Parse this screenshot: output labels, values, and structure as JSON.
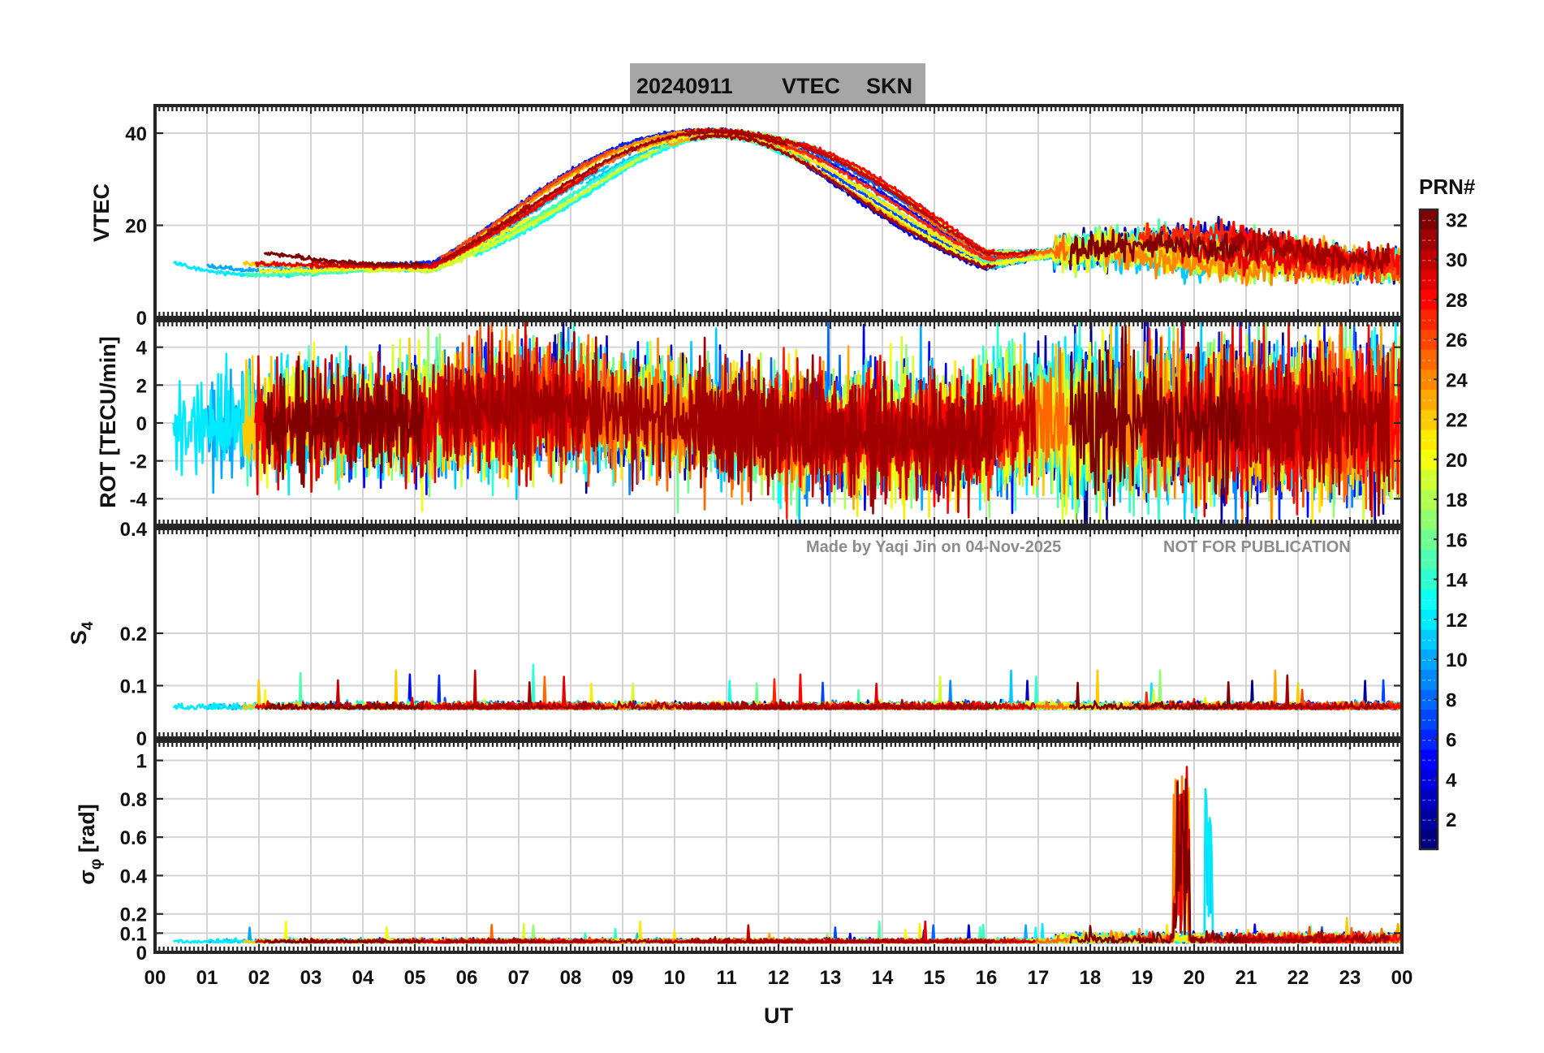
{
  "title": {
    "date": "20240911",
    "quantity": "VTEC",
    "station": "SKN",
    "background": "#a6a6a6"
  },
  "watermark": {
    "author_line": "Made by Yaqi Jin on 04-Nov-2025",
    "notice": "NOT FOR PUBLICATION",
    "color": "#8c8c8c"
  },
  "colorbar": {
    "label": "PRN#",
    "ticks": [
      "2",
      "4",
      "6",
      "8",
      "10",
      "12",
      "14",
      "16",
      "18",
      "20",
      "22",
      "24",
      "26",
      "28",
      "30",
      "32"
    ],
    "colormap": "jet"
  },
  "chart_data": [
    {
      "type": "line",
      "panel": "vtec",
      "ylabel": "VTEC",
      "xlabel": "",
      "xlim": [
        0,
        24
      ],
      "ylim": [
        0,
        46
      ],
      "yticks": [
        "0",
        "20",
        "40"
      ],
      "grid": true,
      "note": "multi-series, one curve per satellite PRN 1-32, colored by PRN"
    },
    {
      "type": "line",
      "panel": "rot",
      "ylabel": "ROT [TECU/min]",
      "xlabel": "",
      "xlim": [
        0,
        24
      ],
      "ylim": [
        -5.4,
        5.4
      ],
      "yticks": [
        "-4",
        "-2",
        "0",
        "2",
        "4"
      ],
      "grid": true
    },
    {
      "type": "line",
      "panel": "s4",
      "ylabel": "S4",
      "xlabel": "",
      "xlim": [
        0,
        24
      ],
      "ylim": [
        0,
        0.4
      ],
      "yticks": [
        "0",
        "0.1",
        "0.2",
        "0.4"
      ],
      "grid": true
    },
    {
      "type": "line",
      "panel": "sigma_phi",
      "ylabel": "σφ [rad]",
      "xlabel": "UT",
      "xlim": [
        0,
        24
      ],
      "ylim": [
        0,
        1.1
      ],
      "yticks": [
        "0",
        "0.1",
        "0.2",
        "0.4",
        "0.6",
        "0.8",
        "1"
      ],
      "xticks": [
        "00",
        "01",
        "02",
        "03",
        "04",
        "05",
        "06",
        "07",
        "08",
        "09",
        "10",
        "11",
        "12",
        "13",
        "14",
        "15",
        "16",
        "17",
        "18",
        "19",
        "20",
        "21",
        "22",
        "23",
        "00"
      ],
      "grid": true
    }
  ]
}
